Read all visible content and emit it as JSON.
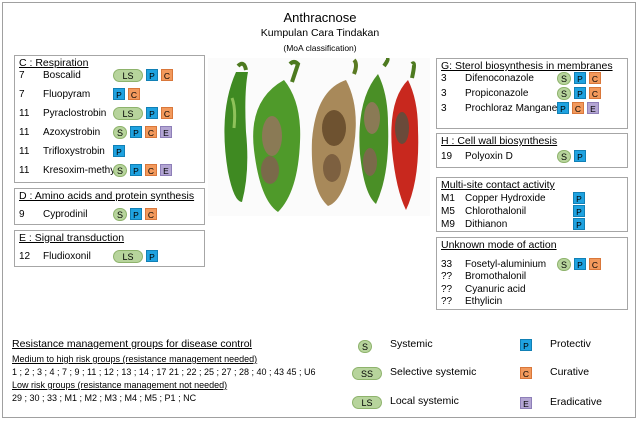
{
  "header": {
    "title": "Anthracnose",
    "subtitle": "Kumpulan Cara Tindakan",
    "note": "(MoA classification)"
  },
  "groups": {
    "respiration": {
      "title": "C : Respiration",
      "items": [
        {
          "code": "7",
          "name": "Boscalid",
          "badges": [
            "LS",
            "P",
            "C"
          ]
        },
        {
          "code": "7",
          "name": "Fluopyram",
          "badges": [
            "P",
            "C"
          ]
        },
        {
          "code": "11",
          "name": "Pyraclostrobin",
          "badges": [
            "LS",
            "P",
            "C"
          ]
        },
        {
          "code": "11",
          "name": "Azoxystrobin",
          "badges": [
            "S",
            "P",
            "C",
            "E"
          ]
        },
        {
          "code": "11",
          "name": "Trifloxystrobin",
          "badges": [
            "P"
          ]
        },
        {
          "code": "11",
          "name": "Kresoxim-methyl",
          "badges": [
            "S",
            "P",
            "C",
            "E"
          ]
        }
      ]
    },
    "amino": {
      "title": "D : Amino acids and protein synthesis",
      "items": [
        {
          "code": "9",
          "name": "Cyprodinil",
          "badges": [
            "S",
            "P",
            "C"
          ]
        }
      ]
    },
    "signal": {
      "title": "E : Signal transduction",
      "items": [
        {
          "code": "12",
          "name": "Fludioxonil",
          "badges": [
            "LS",
            "P"
          ]
        }
      ]
    },
    "sterol": {
      "title": "G: Sterol biosynthesis in membranes",
      "items": [
        {
          "code": "3",
          "name": "Difenoconazole",
          "badges": [
            "S",
            "P",
            "C"
          ]
        },
        {
          "code": "3",
          "name": "Propiconazole",
          "badges": [
            "S",
            "P",
            "C"
          ]
        },
        {
          "code": "3",
          "name": "Prochloraz Manganese",
          "badges": [
            "P",
            "C",
            "E"
          ]
        }
      ]
    },
    "cellwall": {
      "title": "H : Cell wall biosynthesis",
      "items": [
        {
          "code": "19",
          "name": "Polyoxin D",
          "badges": [
            "S",
            "P"
          ]
        }
      ]
    },
    "multisite": {
      "title": "Multi-site contact activity",
      "items": [
        {
          "code": "M1",
          "name": "Copper Hydroxide",
          "badges": [
            "P"
          ]
        },
        {
          "code": "M5",
          "name": "Chlorothalonil",
          "badges": [
            "P"
          ]
        },
        {
          "code": "M9",
          "name": "Dithianon",
          "badges": [
            "P"
          ]
        }
      ]
    },
    "unknown": {
      "title": "Unknown mode of action",
      "items": [
        {
          "code": "33",
          "name": "Fosetyl-aluminium",
          "badges": [
            "S",
            "P",
            "C"
          ]
        },
        {
          "code": "??",
          "name": "Bromothalonil",
          "badges": []
        },
        {
          "code": "??",
          "name": "Cyanuric acid",
          "badges": []
        },
        {
          "code": "??",
          "name": "Ethylicin",
          "badges": []
        }
      ]
    }
  },
  "resistance": {
    "title": "Resistance management groups for disease control",
    "high_label": "Medium to high risk groups (resistance management needed)",
    "high_values": "1 ; 2 ; 3 ; 4 ; 7 ; 9 ; 11 ; 12 ; 13 ; 14 ; 17 21 ; 22 ; 25 ; 27 ; 28 ; 40 ; 43 45 ; U6",
    "low_label": "Low risk groups (resistance management not needed)",
    "low_values": "29 ; 30 ; 33 ; M1 ; M2 ; M3 ; M4 ; M5 ; P1 ; NC"
  },
  "legend": {
    "systemic": {
      "badge": "S",
      "label": "Systemic"
    },
    "selective": {
      "badge": "SS",
      "label": "Selective systemic"
    },
    "local": {
      "badge": "LS",
      "label": "Local systemic"
    },
    "protective": {
      "badge": "P",
      "label": "Protectiv"
    },
    "curative": {
      "badge": "C",
      "label": "Curative"
    },
    "eradicative": {
      "badge": "E",
      "label": "Eradicative"
    }
  },
  "colors": {
    "systemic_green": "#b7d49c",
    "protective_blue": "#1fa2e0",
    "curative_orange": "#f2995c",
    "eradicative_purple": "#b3a5d3"
  },
  "photo": {
    "icon": "chili-peppers-anthracnose-image"
  }
}
